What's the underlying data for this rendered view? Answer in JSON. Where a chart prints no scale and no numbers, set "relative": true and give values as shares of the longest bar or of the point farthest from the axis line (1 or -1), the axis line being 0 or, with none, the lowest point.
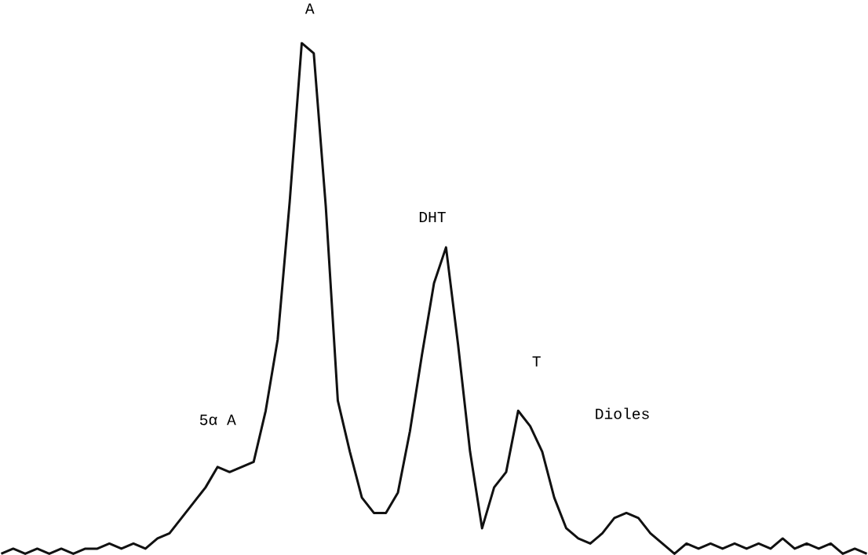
{
  "chart_data": {
    "type": "line",
    "relative": true,
    "color": "#111111",
    "categories": [
      null,
      null,
      null,
      null,
      null,
      null,
      null,
      null,
      null,
      null,
      null,
      null,
      null,
      null,
      null,
      null,
      null,
      null,
      null,
      null,
      null,
      null,
      null,
      null,
      null,
      null,
      null,
      null,
      null,
      null,
      null,
      null,
      null,
      null,
      null,
      null,
      null,
      null,
      null,
      null,
      null,
      null,
      null,
      null,
      null,
      null,
      null,
      null,
      null,
      null,
      null,
      null,
      null,
      null,
      null,
      null,
      null,
      null,
      null,
      null,
      null,
      null,
      null,
      null,
      null,
      null,
      null,
      null,
      null,
      null,
      null,
      null,
      null
    ],
    "values": [
      0.0,
      0.01,
      0.0,
      0.01,
      0.0,
      0.01,
      0.0,
      0.01,
      0.01,
      0.02,
      0.01,
      0.02,
      0.01,
      0.03,
      0.04,
      0.07,
      0.1,
      0.13,
      0.17,
      0.16,
      0.17,
      0.18,
      0.28,
      0.42,
      0.69,
      1,
      0.98,
      0.68,
      0.3,
      0.2,
      0.11,
      0.08,
      0.08,
      0.12,
      0.24,
      0.39,
      0.53,
      0.6,
      0.41,
      0.2,
      0.05,
      0.13,
      0.16,
      0.28,
      0.25,
      0.2,
      0.11,
      0.05,
      0.03,
      0.02,
      0.04,
      0.07,
      0.08,
      0.07,
      0.04,
      0.02,
      0.0,
      0.02,
      0.01,
      0.02,
      0.01,
      0.02,
      0.01,
      0.02,
      0.01,
      0.03,
      0.01,
      0.02,
      0.01,
      0.02,
      0.0,
      0.01,
      0.0
    ],
    "annotations": [
      "5α A",
      "A",
      "DHT",
      "T",
      "Dioles"
    ]
  }
}
